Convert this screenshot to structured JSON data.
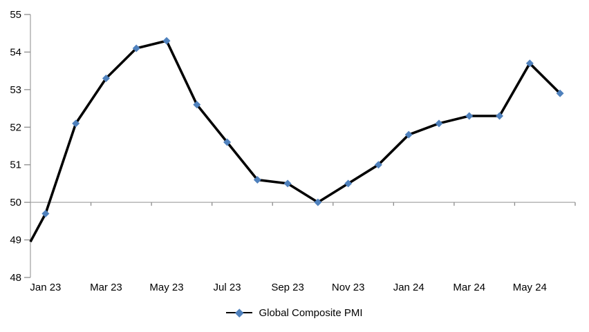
{
  "chart_data": {
    "type": "line",
    "title": "",
    "xlabel": "",
    "ylabel": "",
    "categories": [
      "Jan 23",
      "Feb 23",
      "Mar 23",
      "Apr 23",
      "May 23",
      "Jun 23",
      "Jul 23",
      "Aug 23",
      "Sep 23",
      "Oct 23",
      "Nov 23",
      "Dec 23",
      "Jan 24",
      "Feb 24",
      "Mar 24",
      "Apr 24",
      "May 24",
      "Jun 24"
    ],
    "series": [
      {
        "name": "Global Composite PMI",
        "values": [
          49.7,
          52.1,
          53.3,
          54.1,
          54.3,
          52.6,
          51.6,
          50.6,
          50.5,
          50.0,
          50.5,
          51.0,
          51.8,
          52.1,
          52.3,
          52.3,
          53.7,
          52.9
        ],
        "line_color": "#000000",
        "marker": "diamond",
        "marker_color": "#4F81BD"
      }
    ],
    "left_edge_value": 48.95,
    "ylim": [
      48,
      55
    ],
    "y_tick_step": 1,
    "y_tick_labels": [
      "48",
      "49",
      "50",
      "51",
      "52",
      "53",
      "54",
      "55"
    ],
    "x_tick_labels": [
      "Jan 23",
      "Mar 23",
      "May 23",
      "Jul 23",
      "Sep 23",
      "Nov 23",
      "Jan 24",
      "Mar 24",
      "May 24"
    ],
    "x_label_every": 2,
    "x_axis_tick_interval": 2,
    "axis_cross_value": 50,
    "grid": "off",
    "legend_position": "bottom",
    "axis_color": "#A6A6A6",
    "tick_color": "#8C8C8C",
    "text_color": "#000000",
    "background_color": "#FFFFFF"
  }
}
